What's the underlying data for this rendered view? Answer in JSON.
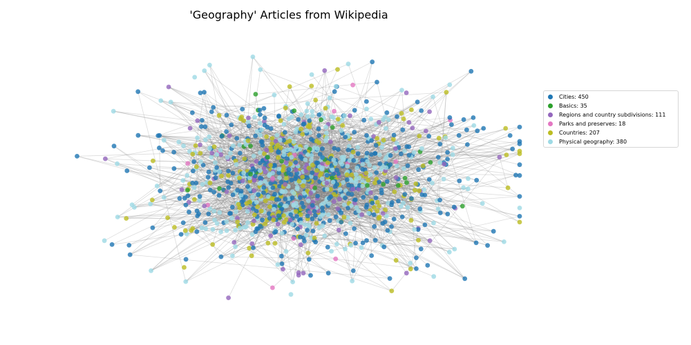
{
  "chart_data": {
    "type": "network",
    "title": "'Geography' Articles from Wikipedia",
    "grid": false,
    "axes_visible": false,
    "legend_placement": "right",
    "edge_color": "#808080",
    "categories": [
      {
        "key": "cities",
        "label": "Cities: 450",
        "name": "Cities",
        "count": 450,
        "color": "#1f77b4"
      },
      {
        "key": "basics",
        "label": "Basics: 35",
        "name": "Basics",
        "count": 35,
        "color": "#2ca02c"
      },
      {
        "key": "regions",
        "label": "Regions and country subdivisions: 111",
        "name": "Regions and country subdivisions",
        "count": 111,
        "color": "#9467bd"
      },
      {
        "key": "parks",
        "label": "Parks and preserves: 18",
        "name": "Parks and preserves",
        "count": 18,
        "color": "#e377c2"
      },
      {
        "key": "countries",
        "label": "Countries: 207",
        "name": "Countries",
        "count": 207,
        "color": "#bcbd22"
      },
      {
        "key": "physical",
        "label": "Physical geography: 380",
        "name": "Physical geography",
        "count": 380,
        "color": "#9edae5"
      }
    ]
  }
}
